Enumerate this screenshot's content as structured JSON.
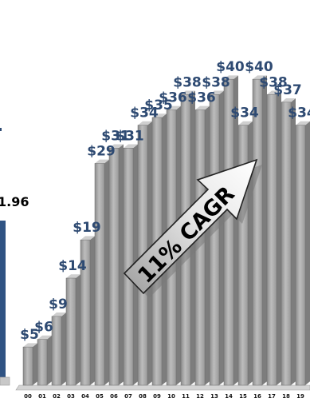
{
  "chart_data": {
    "type": "bar",
    "categories": [
      "00",
      "01",
      "02",
      "03",
      "04",
      "05",
      "06",
      "07",
      "08",
      "09",
      "10",
      "11",
      "12",
      "13",
      "14",
      "15",
      "16",
      "17",
      "18",
      "19"
    ],
    "values": [
      5,
      6,
      9,
      14,
      19,
      29,
      31,
      31,
      34,
      35,
      36,
      38,
      36,
      38,
      40,
      34,
      40,
      38,
      37,
      34
    ],
    "data_labels": [
      "$5",
      "$6",
      "$9",
      "$14",
      "$19",
      "$29",
      "$31",
      "$31",
      "$34",
      "$35",
      "$36",
      "$38",
      "$36",
      "$38",
      "$40",
      "$34",
      "$40",
      "$38",
      "$37",
      "$34"
    ],
    "ylim": [
      0,
      42
    ],
    "grid": false,
    "annotation": "11% CAGR",
    "colors": {
      "bar": "#a6a6a6",
      "bar_dark": "#7f7f7f",
      "label": "#2e4a72",
      "side_bar": "#2f5383"
    }
  },
  "side_panel": {
    "value_label": "1.96"
  }
}
